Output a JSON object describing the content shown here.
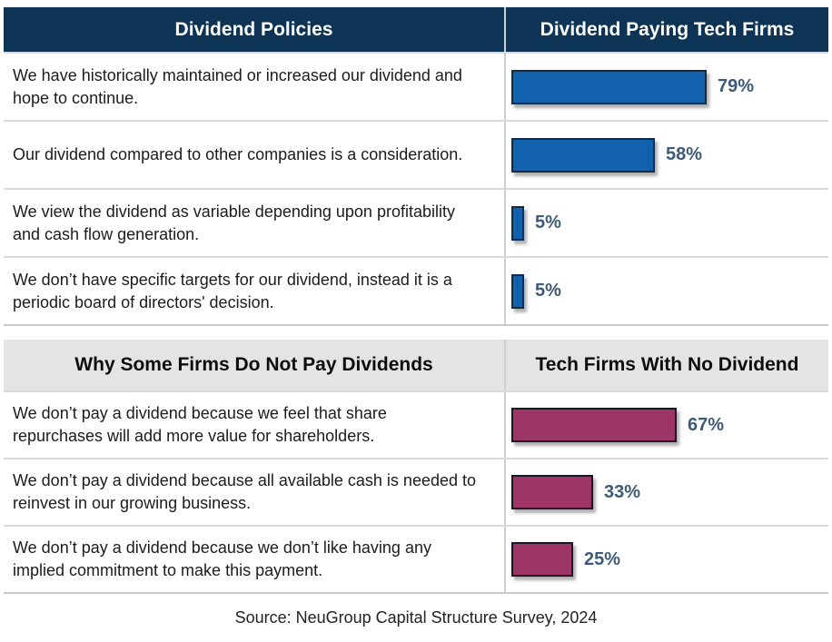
{
  "colors": {
    "navy_header_bg": "#0d3355",
    "gray_header_bg": "#e4e4e4",
    "blue_bar": "#1161ac",
    "maroon_bar": "#9d3567",
    "pct_label": "#3d5a78",
    "divider": "#cfcfcf"
  },
  "table1": {
    "header_left": "Dividend Policies",
    "header_right": "Dividend Paying Tech Firms",
    "rows": [
      {
        "label": "We have historically maintained or increased our dividend and hope to continue.",
        "value": 79,
        "value_label": "79%"
      },
      {
        "label": "Our dividend compared to other companies is a consideration.",
        "value": 58,
        "value_label": "58%"
      },
      {
        "label": "We view the dividend as variable depending upon profitability and cash flow generation.",
        "value": 5,
        "value_label": "5%"
      },
      {
        "label": "We don’t have specific targets for our dividend, instead it is a periodic board of directors' decision.",
        "value": 5,
        "value_label": "5%"
      }
    ]
  },
  "table2": {
    "header_left": "Why Some Firms Do Not Pay Dividends",
    "header_right": "Tech Firms With No Dividend",
    "rows": [
      {
        "label": "We don’t pay a dividend because we feel that share repurchases will add more value for shareholders.",
        "value": 67,
        "value_label": "67%"
      },
      {
        "label": "We don’t pay a dividend because all available cash is needed to reinvest in our growing business.",
        "value": 33,
        "value_label": "33%"
      },
      {
        "label": "We don’t pay a dividend because we don’t like having any implied commitment to make this payment.",
        "value": 25,
        "value_label": "25%"
      }
    ]
  },
  "footer": "Source: NeuGroup Capital Structure Survey, 2024",
  "chart_data": [
    {
      "type": "bar",
      "orientation": "horizontal",
      "title": "Dividend Policies",
      "value_column_title": "Dividend Paying Tech Firms",
      "categories": [
        "We have historically maintained or increased our dividend and hope to continue.",
        "Our dividend compared to other companies is a consideration.",
        "We view the dividend as variable depending upon profitability and cash flow generation.",
        "We don’t have specific targets for our dividend, instead it is a periodic board of directors' decision."
      ],
      "values": [
        79,
        58,
        5,
        5
      ],
      "unit": "%",
      "xlim": [
        0,
        100
      ],
      "bar_color": "#1161ac",
      "data_labels": [
        "79%",
        "58%",
        "5%",
        "5%"
      ]
    },
    {
      "type": "bar",
      "orientation": "horizontal",
      "title": "Why Some Firms Do Not Pay Dividends",
      "value_column_title": "Tech Firms With No Dividend",
      "categories": [
        "We don’t pay a dividend because we feel that share repurchases will add more value for shareholders.",
        "We don’t pay a dividend because all available cash is needed to reinvest in our growing business.",
        "We don’t pay a dividend because we don’t like having any implied commitment to make this payment."
      ],
      "values": [
        67,
        33,
        25
      ],
      "unit": "%",
      "xlim": [
        0,
        100
      ],
      "bar_color": "#9d3567",
      "data_labels": [
        "67%",
        "33%",
        "25%"
      ]
    }
  ]
}
